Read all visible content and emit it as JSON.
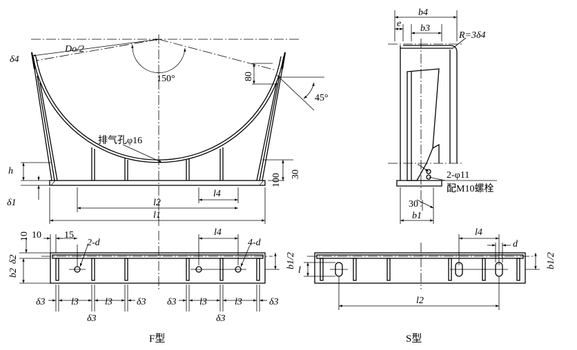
{
  "labels": {
    "d4_left": "δ4",
    "do2": "Do/2",
    "angle150": "150°",
    "dim80": "80",
    "angle45": "45°",
    "vent": "排气孔φ16",
    "h": "h",
    "d1": "δ1",
    "dim30": "30",
    "dim100": "100",
    "l4_top": "l4",
    "l2_top": "l2",
    "l1_top": "l1",
    "side_b4": "b4",
    "side_e": "e",
    "side_b3": "b3",
    "side_R": "R=3δ4",
    "side_holes": "2-φ11",
    "side_bolt": "配M10螺栓",
    "side_30": "30",
    "side_b1": "b1",
    "f_10a": "10",
    "f_10b": "10",
    "f_15": "15",
    "f_2d": "2-d",
    "f_l4": "l4",
    "f_4d": "4-d",
    "f_d2": "δ2",
    "f_b2": "b2",
    "f_b12": "b1/2",
    "f_d3": "δ3",
    "f_l3": "l3",
    "s_l4": "l4",
    "s_d": "d",
    "s_l": "l",
    "s_b12": "b1/2",
    "s_l2": "l2"
  },
  "captions": {
    "f_type": "F型",
    "s_type": "S型"
  }
}
